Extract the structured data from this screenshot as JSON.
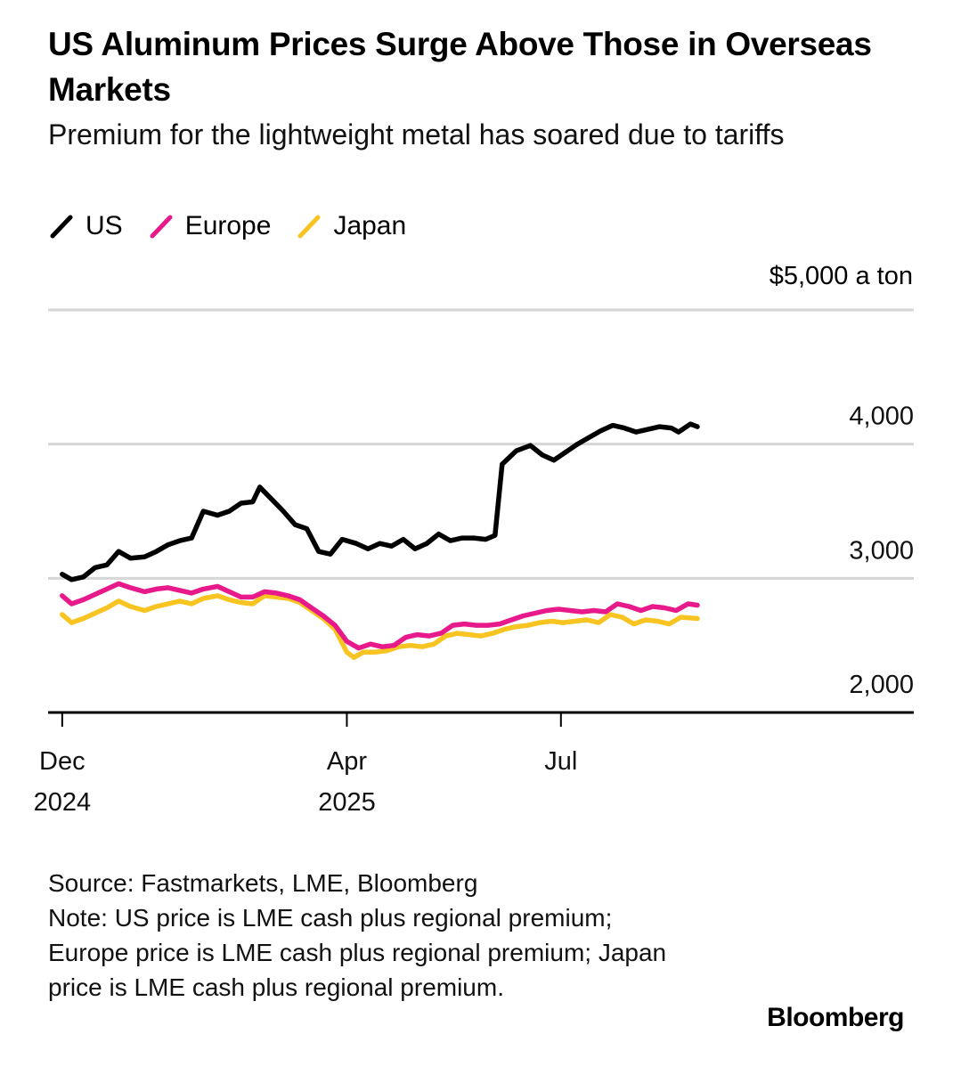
{
  "header": {
    "title": "US Aluminum Prices Surge Above Those in Overseas Markets",
    "subtitle": "Premium for the lightweight metal has soared due to tariffs"
  },
  "legend": [
    {
      "label": "US",
      "color": "#000000"
    },
    {
      "label": "Europe",
      "color": "#e8198b"
    },
    {
      "label": "Japan",
      "color": "#f8c421"
    }
  ],
  "chart_data": {
    "type": "line",
    "unit_label": "$5,000 a ton",
    "ylim": [
      2000,
      5000
    ],
    "y_ticks": [
      {
        "value": 2000,
        "label": "2,000"
      },
      {
        "value": 3000,
        "label": "3,000"
      },
      {
        "value": 4000,
        "label": "4,000"
      },
      {
        "value": 5000,
        "label": ""
      }
    ],
    "xlim": [
      "2024-11-25",
      "2025-11-28"
    ],
    "x_ticks": [
      {
        "date": "2024-12-01",
        "label1": "Dec",
        "label2": "2024"
      },
      {
        "date": "2025-04-01",
        "label1": "Apr",
        "label2": "2025"
      },
      {
        "date": "2025-07-01",
        "label1": "Jul",
        "label2": ""
      }
    ],
    "grid": true,
    "legend_position": "top-left",
    "series": [
      {
        "name": "US",
        "color": "#000000",
        "points": [
          [
            "2024-12-01",
            3030
          ],
          [
            "2024-12-05",
            2990
          ],
          [
            "2024-12-10",
            3010
          ],
          [
            "2024-12-15",
            3080
          ],
          [
            "2024-12-20",
            3100
          ],
          [
            "2024-12-25",
            3200
          ],
          [
            "2024-12-30",
            3150
          ],
          [
            "2025-01-05",
            3160
          ],
          [
            "2025-01-10",
            3200
          ],
          [
            "2025-01-15",
            3250
          ],
          [
            "2025-01-20",
            3280
          ],
          [
            "2025-01-25",
            3300
          ],
          [
            "2025-01-30",
            3500
          ],
          [
            "2025-02-05",
            3470
          ],
          [
            "2025-02-10",
            3500
          ],
          [
            "2025-02-15",
            3560
          ],
          [
            "2025-02-20",
            3570
          ],
          [
            "2025-02-23",
            3680
          ],
          [
            "2025-02-28",
            3590
          ],
          [
            "2025-03-05",
            3500
          ],
          [
            "2025-03-10",
            3400
          ],
          [
            "2025-03-15",
            3370
          ],
          [
            "2025-03-20",
            3200
          ],
          [
            "2025-03-25",
            3180
          ],
          [
            "2025-03-30",
            3290
          ],
          [
            "2025-04-05",
            3260
          ],
          [
            "2025-04-10",
            3220
          ],
          [
            "2025-04-15",
            3260
          ],
          [
            "2025-04-20",
            3240
          ],
          [
            "2025-04-25",
            3290
          ],
          [
            "2025-04-30",
            3220
          ],
          [
            "2025-05-05",
            3260
          ],
          [
            "2025-05-10",
            3330
          ],
          [
            "2025-05-15",
            3280
          ],
          [
            "2025-05-20",
            3300
          ],
          [
            "2025-05-25",
            3300
          ],
          [
            "2025-05-30",
            3290
          ],
          [
            "2025-06-03",
            3320
          ],
          [
            "2025-06-06",
            3850
          ],
          [
            "2025-06-12",
            3950
          ],
          [
            "2025-06-18",
            3990
          ],
          [
            "2025-06-23",
            3920
          ],
          [
            "2025-06-28",
            3880
          ],
          [
            "2025-07-03",
            3940
          ],
          [
            "2025-07-08",
            4000
          ],
          [
            "2025-07-13",
            4050
          ],
          [
            "2025-07-18",
            4100
          ],
          [
            "2025-07-23",
            4140
          ],
          [
            "2025-07-28",
            4120
          ],
          [
            "2025-08-02",
            4090
          ],
          [
            "2025-08-07",
            4110
          ],
          [
            "2025-08-12",
            4130
          ],
          [
            "2025-08-17",
            4120
          ],
          [
            "2025-08-20",
            4090
          ],
          [
            "2025-08-25",
            4150
          ],
          [
            "2025-08-28",
            4130
          ]
        ]
      },
      {
        "name": "Europe",
        "color": "#e8198b",
        "points": [
          [
            "2024-12-01",
            2870
          ],
          [
            "2024-12-05",
            2810
          ],
          [
            "2024-12-10",
            2840
          ],
          [
            "2024-12-15",
            2880
          ],
          [
            "2024-12-20",
            2920
          ],
          [
            "2024-12-25",
            2960
          ],
          [
            "2024-12-30",
            2930
          ],
          [
            "2025-01-05",
            2900
          ],
          [
            "2025-01-10",
            2920
          ],
          [
            "2025-01-15",
            2930
          ],
          [
            "2025-01-20",
            2910
          ],
          [
            "2025-01-25",
            2890
          ],
          [
            "2025-01-30",
            2920
          ],
          [
            "2025-02-05",
            2940
          ],
          [
            "2025-02-10",
            2900
          ],
          [
            "2025-02-15",
            2860
          ],
          [
            "2025-02-20",
            2860
          ],
          [
            "2025-02-25",
            2900
          ],
          [
            "2025-03-02",
            2890
          ],
          [
            "2025-03-07",
            2870
          ],
          [
            "2025-03-12",
            2840
          ],
          [
            "2025-03-17",
            2780
          ],
          [
            "2025-03-22",
            2720
          ],
          [
            "2025-03-27",
            2650
          ],
          [
            "2025-04-01",
            2530
          ],
          [
            "2025-04-06",
            2480
          ],
          [
            "2025-04-11",
            2510
          ],
          [
            "2025-04-16",
            2490
          ],
          [
            "2025-04-21",
            2500
          ],
          [
            "2025-04-26",
            2560
          ],
          [
            "2025-05-01",
            2580
          ],
          [
            "2025-05-06",
            2570
          ],
          [
            "2025-05-11",
            2590
          ],
          [
            "2025-05-16",
            2650
          ],
          [
            "2025-05-21",
            2660
          ],
          [
            "2025-05-26",
            2650
          ],
          [
            "2025-05-31",
            2650
          ],
          [
            "2025-06-05",
            2660
          ],
          [
            "2025-06-10",
            2690
          ],
          [
            "2025-06-15",
            2720
          ],
          [
            "2025-06-20",
            2740
          ],
          [
            "2025-06-25",
            2760
          ],
          [
            "2025-06-30",
            2770
          ],
          [
            "2025-07-05",
            2760
          ],
          [
            "2025-07-10",
            2750
          ],
          [
            "2025-07-15",
            2760
          ],
          [
            "2025-07-20",
            2750
          ],
          [
            "2025-07-25",
            2810
          ],
          [
            "2025-07-30",
            2790
          ],
          [
            "2025-08-04",
            2760
          ],
          [
            "2025-08-09",
            2790
          ],
          [
            "2025-08-14",
            2780
          ],
          [
            "2025-08-19",
            2760
          ],
          [
            "2025-08-24",
            2810
          ],
          [
            "2025-08-28",
            2800
          ]
        ]
      },
      {
        "name": "Japan",
        "color": "#f8c421",
        "points": [
          [
            "2024-12-01",
            2730
          ],
          [
            "2024-12-05",
            2670
          ],
          [
            "2024-12-10",
            2700
          ],
          [
            "2024-12-15",
            2740
          ],
          [
            "2024-12-20",
            2780
          ],
          [
            "2024-12-25",
            2830
          ],
          [
            "2024-12-30",
            2790
          ],
          [
            "2025-01-05",
            2760
          ],
          [
            "2025-01-10",
            2790
          ],
          [
            "2025-01-15",
            2810
          ],
          [
            "2025-01-20",
            2830
          ],
          [
            "2025-01-25",
            2810
          ],
          [
            "2025-01-30",
            2850
          ],
          [
            "2025-02-05",
            2870
          ],
          [
            "2025-02-10",
            2840
          ],
          [
            "2025-02-15",
            2820
          ],
          [
            "2025-02-20",
            2810
          ],
          [
            "2025-02-25",
            2870
          ],
          [
            "2025-03-02",
            2860
          ],
          [
            "2025-03-07",
            2850
          ],
          [
            "2025-03-12",
            2820
          ],
          [
            "2025-03-17",
            2760
          ],
          [
            "2025-03-22",
            2700
          ],
          [
            "2025-03-27",
            2620
          ],
          [
            "2025-04-01",
            2450
          ],
          [
            "2025-04-04",
            2410
          ],
          [
            "2025-04-08",
            2450
          ],
          [
            "2025-04-13",
            2450
          ],
          [
            "2025-04-18",
            2460
          ],
          [
            "2025-04-23",
            2490
          ],
          [
            "2025-04-28",
            2500
          ],
          [
            "2025-05-03",
            2490
          ],
          [
            "2025-05-08",
            2510
          ],
          [
            "2025-05-13",
            2570
          ],
          [
            "2025-05-18",
            2590
          ],
          [
            "2025-05-23",
            2580
          ],
          [
            "2025-05-28",
            2570
          ],
          [
            "2025-06-02",
            2590
          ],
          [
            "2025-06-07",
            2620
          ],
          [
            "2025-06-12",
            2640
          ],
          [
            "2025-06-17",
            2650
          ],
          [
            "2025-06-22",
            2670
          ],
          [
            "2025-06-27",
            2680
          ],
          [
            "2025-07-02",
            2670
          ],
          [
            "2025-07-07",
            2680
          ],
          [
            "2025-07-12",
            2690
          ],
          [
            "2025-07-17",
            2670
          ],
          [
            "2025-07-22",
            2730
          ],
          [
            "2025-07-27",
            2710
          ],
          [
            "2025-08-01",
            2660
          ],
          [
            "2025-08-06",
            2690
          ],
          [
            "2025-08-11",
            2680
          ],
          [
            "2025-08-16",
            2660
          ],
          [
            "2025-08-21",
            2710
          ],
          [
            "2025-08-28",
            2700
          ]
        ]
      }
    ]
  },
  "footer": {
    "source": "Source: Fastmarkets, LME, Bloomberg",
    "note": "Note: US price is LME cash plus regional premium; Europe price is LME cash plus regional premium; Japan price is LME cash plus regional premium.",
    "brand": "Bloomberg"
  }
}
